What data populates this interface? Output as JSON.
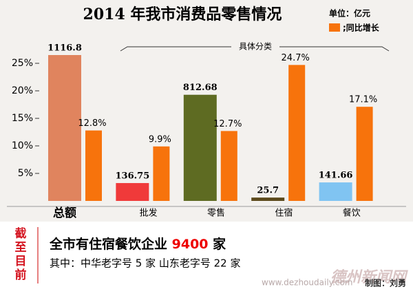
{
  "chart_data": {
    "type": "bar",
    "title": "2014 年我市消费品零售情况",
    "unit_label": "单位：亿元",
    "group_label": "具体分类",
    "categories": [
      "总额",
      "批发",
      "零售",
      "住宿",
      "餐饮"
    ],
    "series": [
      {
        "name": "单位：亿元",
        "axis": "y2",
        "colors": [
          "#e0845e",
          "#f03a3a",
          "#5e6b22",
          "#5c4a1c",
          "#80c4f2"
        ],
        "values": [
          1116.8,
          136.75,
          812.68,
          25.7,
          141.66
        ]
      },
      {
        "name": ";同比增长",
        "color": "#f7730c",
        "values": [
          12.8,
          9.9,
          12.7,
          24.7,
          17.1
        ],
        "value_labels": [
          "12.8%",
          "9.9%",
          "12.7%",
          "24.7%",
          "17.1%"
        ]
      }
    ],
    "ylim": [
      0,
      28
    ],
    "yticks": [
      {
        "value": 5,
        "label": "5%"
      },
      {
        "value": 10,
        "label": "10%"
      },
      {
        "value": 15,
        "label": "15%"
      },
      {
        "value": 20,
        "label": "20%"
      },
      {
        "value": 25,
        "label": "25%"
      }
    ],
    "y2lim": [
      0,
      1180
    ],
    "side_label": [
      "截",
      "至",
      "目",
      "前"
    ],
    "note_line1": [
      "全市有住宿餐饮企业 ",
      "9400",
      " 家"
    ],
    "note_line2": "其中：中华老字号 5 家  山东老字号 22 家",
    "credit": "制图：刘勇",
    "watermark": [
      "德州新闻网",
      "www.dezhoudaily.com"
    ]
  }
}
